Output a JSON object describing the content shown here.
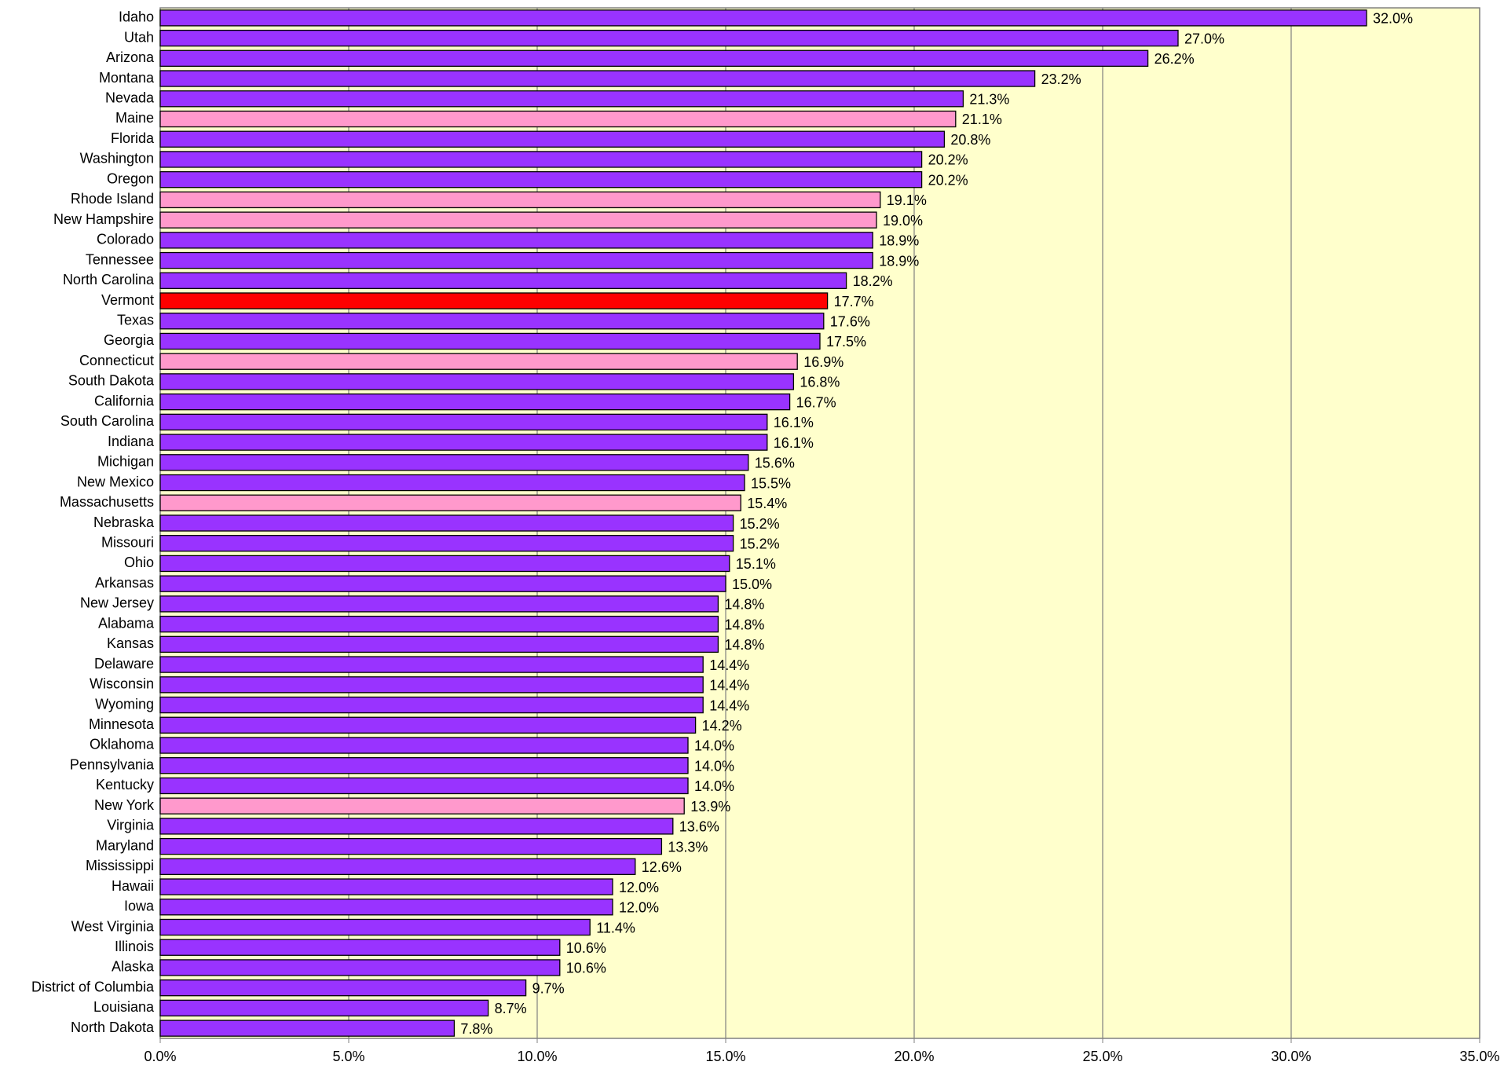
{
  "chart_data": {
    "type": "barh",
    "categories": [
      "Idaho",
      "Utah",
      "Arizona",
      "Montana",
      "Nevada",
      "Maine",
      "Florida",
      "Washington",
      "Oregon",
      "Rhode Island",
      "New Hampshire",
      "Colorado",
      "Tennessee",
      "North Carolina",
      "Vermont",
      "Texas",
      "Georgia",
      "Connecticut",
      "South Dakota",
      "California",
      "South Carolina",
      "Indiana",
      "Michigan",
      "New Mexico",
      "Massachusetts",
      "Nebraska",
      "Missouri",
      "Ohio",
      "Arkansas",
      "New Jersey",
      "Alabama",
      "Kansas",
      "Delaware",
      "Wisconsin",
      "Wyoming",
      "Minnesota",
      "Oklahoma",
      "Pennsylvania",
      "Kentucky",
      "New York",
      "Virginia",
      "Maryland",
      "Mississippi",
      "Hawaii",
      "Iowa",
      "West Virginia",
      "Illinois",
      "Alaska",
      "District of Columbia",
      "Louisiana",
      "North Dakota"
    ],
    "values": [
      32.0,
      27.0,
      26.2,
      23.2,
      21.3,
      21.1,
      20.8,
      20.2,
      20.2,
      19.1,
      19.0,
      18.9,
      18.9,
      18.2,
      17.7,
      17.6,
      17.5,
      16.9,
      16.8,
      16.7,
      16.1,
      16.1,
      15.6,
      15.5,
      15.4,
      15.2,
      15.2,
      15.1,
      15.0,
      14.8,
      14.8,
      14.8,
      14.4,
      14.4,
      14.4,
      14.2,
      14.0,
      14.0,
      14.0,
      13.9,
      13.6,
      13.3,
      12.6,
      12.0,
      12.0,
      11.4,
      10.6,
      10.6,
      9.7,
      8.7,
      7.8
    ],
    "value_labels": [
      "32.0%",
      "27.0%",
      "26.2%",
      "23.2%",
      "21.3%",
      "21.1%",
      "20.8%",
      "20.2%",
      "20.2%",
      "19.1%",
      "19.0%",
      "18.9%",
      "18.9%",
      "18.2%",
      "17.7%",
      "17.6%",
      "17.5%",
      "16.9%",
      "16.8%",
      "16.7%",
      "16.1%",
      "16.1%",
      "15.6%",
      "15.5%",
      "15.4%",
      "15.2%",
      "15.2%",
      "15.1%",
      "15.0%",
      "14.8%",
      "14.8%",
      "14.8%",
      "14.4%",
      "14.4%",
      "14.4%",
      "14.2%",
      "14.0%",
      "14.0%",
      "14.0%",
      "13.9%",
      "13.6%",
      "13.3%",
      "12.6%",
      "12.0%",
      "12.0%",
      "11.4%",
      "10.6%",
      "10.6%",
      "9.7%",
      "8.7%",
      "7.8%"
    ],
    "colors": [
      "#9933ff",
      "#9933ff",
      "#9933ff",
      "#9933ff",
      "#9933ff",
      "#ff99cc",
      "#9933ff",
      "#9933ff",
      "#9933ff",
      "#ff99cc",
      "#ff99cc",
      "#9933ff",
      "#9933ff",
      "#9933ff",
      "#ff0000",
      "#9933ff",
      "#9933ff",
      "#ff99cc",
      "#9933ff",
      "#9933ff",
      "#9933ff",
      "#9933ff",
      "#9933ff",
      "#9933ff",
      "#ff99cc",
      "#9933ff",
      "#9933ff",
      "#9933ff",
      "#9933ff",
      "#9933ff",
      "#9933ff",
      "#9933ff",
      "#9933ff",
      "#9933ff",
      "#9933ff",
      "#9933ff",
      "#9933ff",
      "#9933ff",
      "#9933ff",
      "#ff99cc",
      "#9933ff",
      "#9933ff",
      "#9933ff",
      "#9933ff",
      "#9933ff",
      "#9933ff",
      "#9933ff",
      "#9933ff",
      "#9933ff",
      "#9933ff",
      "#9933ff"
    ],
    "xlim": [
      0,
      35
    ],
    "xticks": [
      {
        "value": 0,
        "label": "0.0%"
      },
      {
        "value": 5,
        "label": "5.0%"
      },
      {
        "value": 10,
        "label": "10.0%"
      },
      {
        "value": 15,
        "label": "15.0%"
      },
      {
        "value": 20,
        "label": "20.0%"
      },
      {
        "value": 25,
        "label": "25.0%"
      },
      {
        "value": 30,
        "label": "30.0%"
      },
      {
        "value": 35,
        "label": "35.0%"
      }
    ],
    "grid": true
  }
}
